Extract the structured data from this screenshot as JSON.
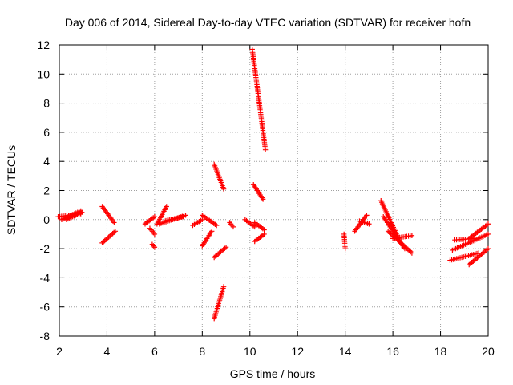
{
  "chart_data": {
    "type": "scatter",
    "title": "Day 006 of 2014, Sidereal Day-to-day VTEC variation (SDTVAR) for receiver hofn",
    "xlabel": "GPS time / hours",
    "ylabel": "SDTVAR / TECUs",
    "xlim": [
      2,
      20
    ],
    "ylim": [
      -8,
      12
    ],
    "xticks": [
      2,
      4,
      6,
      8,
      10,
      12,
      14,
      16,
      18,
      20
    ],
    "yticks": [
      -8,
      -6,
      -4,
      -2,
      0,
      2,
      4,
      6,
      8,
      10,
      12
    ],
    "grid": true,
    "marker": "+",
    "color": "#ff0000",
    "series": [
      {
        "name": "SDTVAR",
        "segments": [
          {
            "x": [
              1.95,
              2.9
            ],
            "y": [
              0.2,
              0.4
            ]
          },
          {
            "x": [
              2.1,
              2.9
            ],
            "y": [
              0.0,
              0.6
            ]
          },
          {
            "x": [
              2.3,
              2.95
            ],
            "y": [
              0.0,
              0.5
            ]
          },
          {
            "x": [
              3.8,
              4.3
            ],
            "y": [
              0.9,
              -0.2
            ]
          },
          {
            "x": [
              3.8,
              4.35
            ],
            "y": [
              -1.6,
              -0.8
            ]
          },
          {
            "x": [
              5.6,
              6.0
            ],
            "y": [
              -0.3,
              0.2
            ]
          },
          {
            "x": [
              5.8,
              6.0
            ],
            "y": [
              -0.6,
              -1.0
            ]
          },
          {
            "x": [
              5.9,
              6.0
            ],
            "y": [
              -1.7,
              -1.9
            ]
          },
          {
            "x": [
              6.1,
              6.5
            ],
            "y": [
              -0.3,
              0.9
            ]
          },
          {
            "x": [
              6.2,
              7.3
            ],
            "y": [
              -0.3,
              0.3
            ]
          },
          {
            "x": [
              6.4,
              7.2
            ],
            "y": [
              -0.1,
              0.2
            ]
          },
          {
            "x": [
              7.6,
              8.0
            ],
            "y": [
              -0.4,
              0.0
            ]
          },
          {
            "x": [
              8.0,
              8.6
            ],
            "y": [
              0.3,
              -0.4
            ]
          },
          {
            "x": [
              8.0,
              8.4
            ],
            "y": [
              -1.8,
              -0.8
            ]
          },
          {
            "x": [
              8.5,
              8.9
            ],
            "y": [
              3.8,
              2.1
            ]
          },
          {
            "x": [
              8.5,
              9.0
            ],
            "y": [
              -2.6,
              -1.9
            ]
          },
          {
            "x": [
              8.5,
              8.9
            ],
            "y": [
              -6.8,
              -4.6
            ]
          },
          {
            "x": [
              9.15,
              9.3
            ],
            "y": [
              -0.2,
              -0.5
            ]
          },
          {
            "x": [
              9.8,
              10.2
            ],
            "y": [
              0.0,
              -0.5
            ]
          },
          {
            "x": [
              10.1,
              10.65
            ],
            "y": [
              11.7,
              4.8
            ]
          },
          {
            "x": [
              10.15,
              10.55
            ],
            "y": [
              2.4,
              1.4
            ]
          },
          {
            "x": [
              10.2,
              10.6
            ],
            "y": [
              -0.2,
              -0.7
            ]
          },
          {
            "x": [
              10.2,
              10.6
            ],
            "y": [
              -1.5,
              -1.0
            ]
          },
          {
            "x": [
              13.95,
              14.0
            ],
            "y": [
              -1.0,
              -2.0
            ]
          },
          {
            "x": [
              14.4,
              14.9
            ],
            "y": [
              -0.8,
              0.3
            ]
          },
          {
            "x": [
              14.6,
              15.0
            ],
            "y": [
              -0.1,
              -0.3
            ]
          },
          {
            "x": [
              15.5,
              16.3
            ],
            "y": [
              1.3,
              -1.5
            ]
          },
          {
            "x": [
              15.6,
              16.5
            ],
            "y": [
              0.2,
              -2.0
            ]
          },
          {
            "x": [
              15.8,
              16.8
            ],
            "y": [
              -0.8,
              -2.3
            ]
          },
          {
            "x": [
              16.0,
              16.8
            ],
            "y": [
              -1.3,
              -1.1
            ]
          },
          {
            "x": [
              18.4,
              19.6
            ],
            "y": [
              -2.8,
              -2.3
            ]
          },
          {
            "x": [
              18.5,
              20.0
            ],
            "y": [
              -2.1,
              -1.0
            ]
          },
          {
            "x": [
              18.6,
              19.4
            ],
            "y": [
              -1.4,
              -1.3
            ]
          },
          {
            "x": [
              19.2,
              20.0
            ],
            "y": [
              -1.3,
              -0.3
            ]
          },
          {
            "x": [
              19.2,
              20.0
            ],
            "y": [
              -3.1,
              -2.0
            ]
          }
        ]
      }
    ]
  }
}
